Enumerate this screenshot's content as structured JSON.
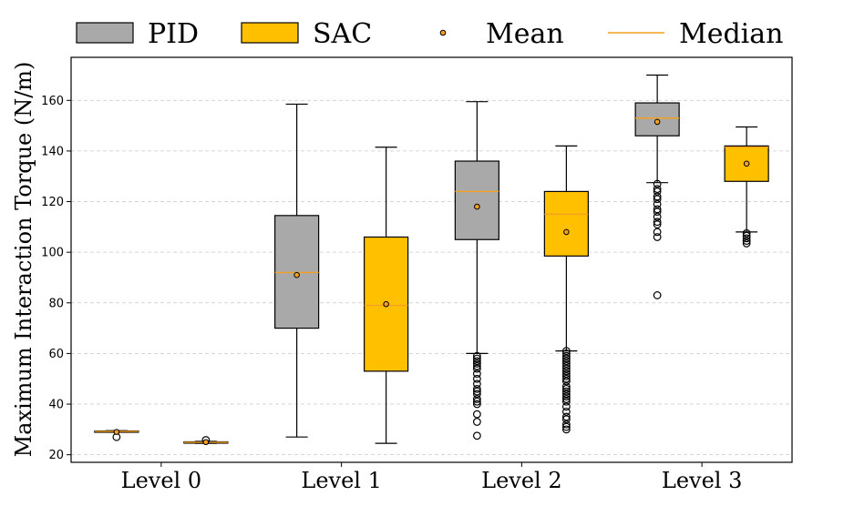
{
  "chart_data": {
    "type": "boxplot",
    "title": "",
    "xlabel": "",
    "ylabel": "Maximum Interaction Torque (N/m)",
    "ylim": [
      17,
      177
    ],
    "yticks": [
      20,
      40,
      60,
      80,
      100,
      120,
      140,
      160
    ],
    "grid": "horizontal dashed",
    "categories": [
      "Level 0",
      "Level 1",
      "Level 2",
      "Level 3"
    ],
    "colors": {
      "PID": "#a9a9a9",
      "SAC": "#ffc000",
      "mean": "#f4a020",
      "median": "#f4a020"
    },
    "legend": {
      "placement": "top",
      "entries": [
        {
          "label": "PID",
          "kind": "box",
          "color": "#a9a9a9"
        },
        {
          "label": "SAC",
          "kind": "box",
          "color": "#ffc000"
        },
        {
          "label": "Mean",
          "kind": "marker",
          "color": "#f4a020"
        },
        {
          "label": "Median",
          "kind": "line",
          "color": "#f4a020"
        }
      ]
    },
    "series": [
      {
        "name": "PID",
        "boxes": [
          {
            "category": "Level 0",
            "whislo": 29.0,
            "q1": 29.0,
            "median": 29.2,
            "q3": 29.4,
            "whishi": 29.5,
            "mean": 29.0,
            "fliers": [
              27.0
            ]
          },
          {
            "category": "Level 1",
            "whislo": 27.0,
            "q1": 70.0,
            "median": 92.0,
            "q3": 114.5,
            "whishi": 158.5,
            "mean": 91.0,
            "fliers": []
          },
          {
            "category": "Level 2",
            "whislo": 60.0,
            "q1": 105.0,
            "median": 124.0,
            "q3": 136.0,
            "whishi": 159.5,
            "mean": 118.0,
            "fliers": [
              59,
              58,
              57,
              56,
              55,
              54,
              52,
              50,
              48,
              46,
              45,
              44,
              42,
              41,
              40,
              36,
              33,
              27.5
            ]
          },
          {
            "category": "Level 3",
            "whislo": 127.5,
            "q1": 146.0,
            "median": 153.0,
            "q3": 159.0,
            "whishi": 170.0,
            "mean": 151.5,
            "fliers": [
              127,
              125,
              124,
              122,
              121,
              119,
              117,
              116,
              114,
              112,
              111,
              108,
              106,
              83
            ]
          }
        ]
      },
      {
        "name": "SAC",
        "boxes": [
          {
            "category": "Level 0",
            "whislo": 24.5,
            "q1": 24.7,
            "median": 24.9,
            "q3": 25.1,
            "whishi": 25.3,
            "mean": 25.0,
            "fliers": [
              25.8
            ]
          },
          {
            "category": "Level 1",
            "whislo": 24.5,
            "q1": 53.0,
            "median": 79.0,
            "q3": 106.0,
            "whishi": 141.5,
            "mean": 79.5,
            "fliers": []
          },
          {
            "category": "Level 2",
            "whislo": 61.0,
            "q1": 98.5,
            "median": 115.0,
            "q3": 124.0,
            "whishi": 142.0,
            "mean": 108.0,
            "fliers": [
              61,
              60,
              59,
              58,
              57,
              56,
              55,
              54,
              53,
              52,
              51,
              50,
              49,
              47,
              46,
              45,
              44,
              43,
              42,
              41,
              39,
              37,
              35,
              34,
              32,
              31,
              30
            ]
          },
          {
            "category": "Level 3",
            "whislo": 108.0,
            "q1": 128.0,
            "median": 141.5,
            "q3": 142.0,
            "whishi": 149.5,
            "mean": 135.0,
            "fliers": [
              107.5,
              106.5,
              105.5,
              104.5,
              103.5
            ]
          }
        ]
      }
    ]
  }
}
